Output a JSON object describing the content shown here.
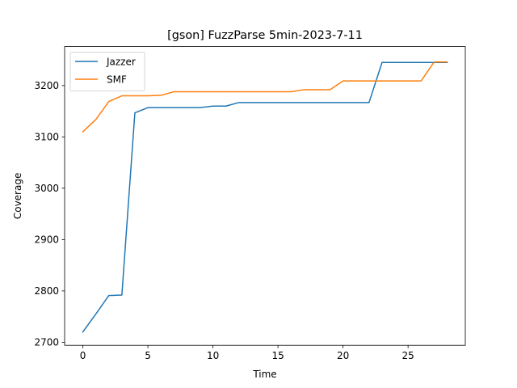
{
  "chart_data": {
    "type": "line",
    "title": "[gson] FuzzParse 5min-2023-7-11",
    "xlabel": "Time",
    "ylabel": "Coverage",
    "xlim": [
      -1.4,
      29.4
    ],
    "ylim": [
      2694,
      3276
    ],
    "xticks": [
      0,
      5,
      10,
      15,
      20,
      25
    ],
    "yticks": [
      2700,
      2800,
      2900,
      3000,
      3100,
      3200
    ],
    "xtick_labels": [
      "0",
      "5",
      "10",
      "15",
      "20",
      "25"
    ],
    "ytick_labels": [
      "2700",
      "2800",
      "2900",
      "3000",
      "3100",
      "3200"
    ],
    "grid": false,
    "legend_position": "upper-left",
    "series": [
      {
        "name": "Jazzer",
        "color": "#1f77b4",
        "x": [
          0,
          1,
          2,
          3,
          4,
          5,
          6,
          7,
          8,
          9,
          10,
          11,
          12,
          13,
          14,
          15,
          16,
          17,
          18,
          19,
          20,
          21,
          22,
          23,
          24,
          25,
          26,
          27,
          28
        ],
        "y": [
          2720,
          2755,
          2791,
          2792,
          3147,
          3157,
          3157,
          3157,
          3157,
          3157,
          3160,
          3160,
          3167,
          3167,
          3167,
          3167,
          3167,
          3167,
          3167,
          3167,
          3167,
          3167,
          3167,
          3245,
          3245,
          3245,
          3245,
          3245,
          3245
        ]
      },
      {
        "name": "SMF",
        "color": "#ff7f0e",
        "x": [
          0,
          1,
          2,
          3,
          4,
          5,
          6,
          7,
          8,
          9,
          10,
          11,
          12,
          13,
          14,
          15,
          16,
          17,
          18,
          19,
          20,
          21,
          22,
          23,
          24,
          25,
          26,
          27,
          28
        ],
        "y": [
          3110,
          3134,
          3169,
          3180,
          3180,
          3180,
          3181,
          3188,
          3188,
          3188,
          3188,
          3188,
          3188,
          3188,
          3188,
          3188,
          3188,
          3192,
          3192,
          3192,
          3209,
          3209,
          3209,
          3209,
          3209,
          3209,
          3209,
          3246,
          3246
        ]
      }
    ]
  }
}
